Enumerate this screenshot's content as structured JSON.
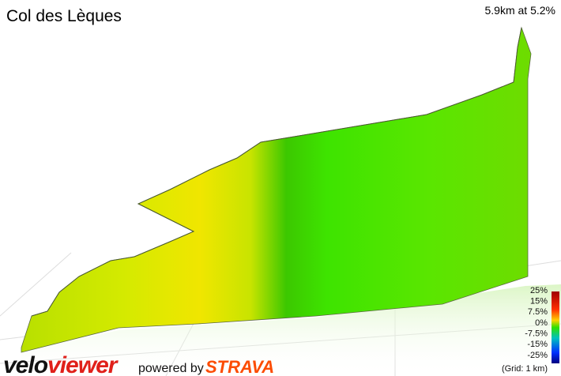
{
  "header": {
    "title": "Col des Lèques",
    "summary": "5.9km at 5.2%"
  },
  "legend": {
    "ticks": [
      "25%",
      "15%",
      "7.5%",
      "0%",
      "-7.5%",
      "-15%",
      "-25%"
    ],
    "grid_note": "(Grid: 1 km)"
  },
  "footer": {
    "logo_first": "velo",
    "logo_second": "viewer",
    "powered_by": "powered by",
    "brand": "STRAVA"
  }
}
